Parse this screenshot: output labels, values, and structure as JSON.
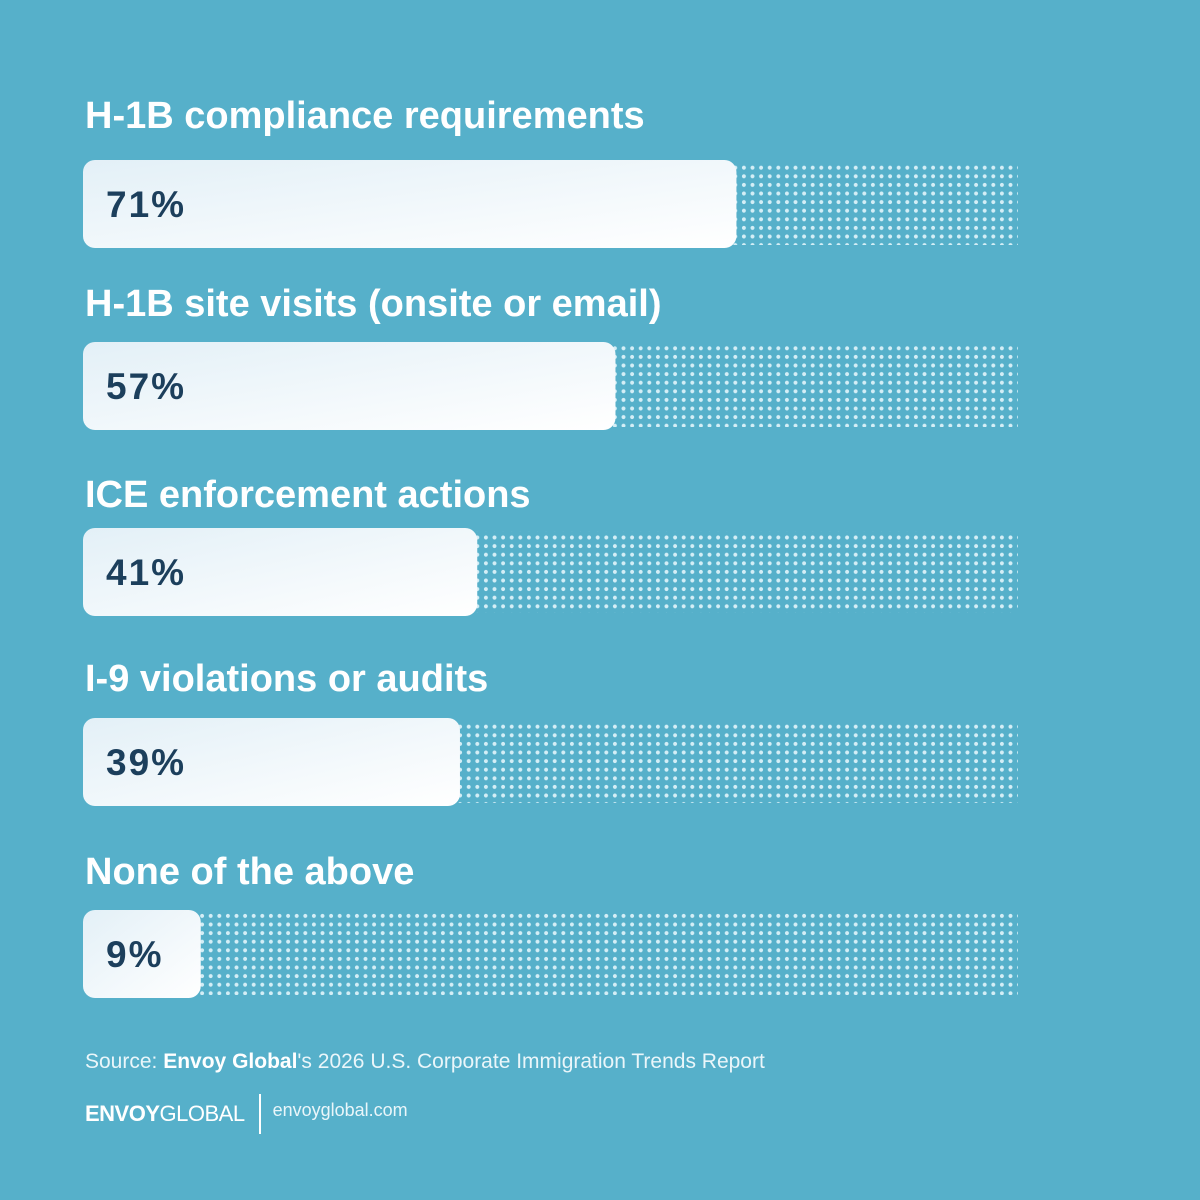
{
  "chart_data": {
    "type": "bar",
    "orientation": "horizontal",
    "categories": [
      "H-1B compliance requirements",
      "H-1B site visits (onsite or email)",
      "ICE enforcement actions",
      "I-9 violations or audits",
      "None of the above"
    ],
    "values": [
      71,
      57,
      41,
      39,
      9
    ],
    "value_labels": [
      "71%",
      "57%",
      "41%",
      "39%",
      "9%"
    ],
    "value_unit": "%",
    "xlim": [
      0,
      100
    ],
    "title": "",
    "xlabel": "",
    "ylabel": "",
    "grid": false,
    "colors": {
      "background": "#56b0ca",
      "bar_start": "#e3f0f7",
      "bar_end": "#ffffff",
      "dots": "#d4eef6",
      "label": "#ffffff",
      "value": "#1c3f5c"
    }
  },
  "source": {
    "prefix": "Source: ",
    "brand": "Envoy Global",
    "suffix": "'s 2026 U.S. Corporate Immigration Trends Report"
  },
  "footer": {
    "logo_bold": "ENVOY",
    "logo_light": "GLOBAL",
    "website": "envoyglobal.com"
  }
}
